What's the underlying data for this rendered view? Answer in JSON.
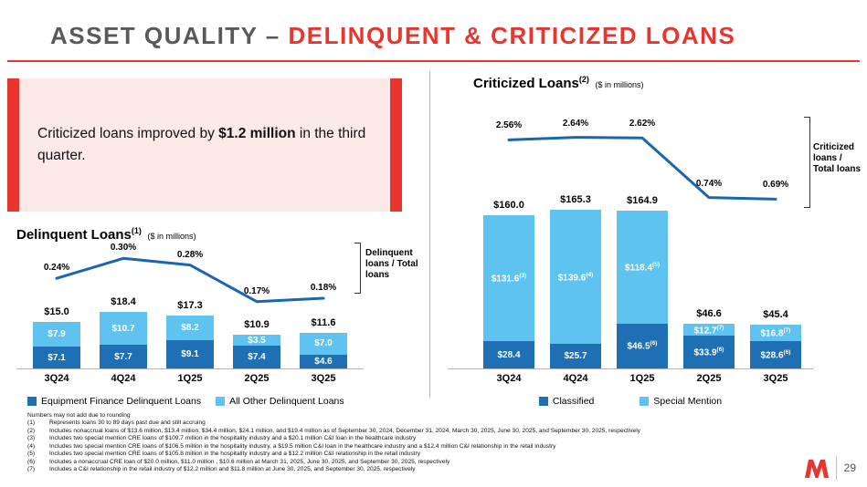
{
  "colors": {
    "red": "#e8352d",
    "dark_blue": "#1f6fb5",
    "light_blue": "#5ec3f0",
    "line_blue": "#1a66b0",
    "title_gray": "#58595b"
  },
  "header": {
    "title_gray": "ASSET QUALITY – ",
    "title_red": "DELINQUENT & CRITICIZED LOANS"
  },
  "callout": {
    "prefix": "Criticized loans improved by ",
    "bold": "$1.2 million",
    "suffix": " in the third quarter."
  },
  "chart_data": [
    {
      "id": "delinquent",
      "type": "bar",
      "title": "Delinquent Loans",
      "title_sup": "(1)",
      "subtitle": "($ in millions)",
      "categories": [
        "3Q24",
        "4Q24",
        "1Q25",
        "2Q25",
        "3Q25"
      ],
      "series": [
        {
          "name": "Equipment Finance Delinquent Loans",
          "position": "bottom",
          "color_key": "dark_blue",
          "values": [
            7.1,
            7.7,
            9.1,
            7.4,
            4.6
          ],
          "labels": [
            {
              "v": "$7.1"
            },
            {
              "v": "$7.7"
            },
            {
              "v": "$9.1"
            },
            {
              "v": "$7.4"
            },
            {
              "v": "$4.6"
            }
          ]
        },
        {
          "name": "All Other Delinquent Loans",
          "position": "top",
          "color_key": "light_blue",
          "values": [
            7.9,
            10.7,
            8.2,
            3.5,
            7.0
          ],
          "labels": [
            {
              "v": "$7.9"
            },
            {
              "v": "$10.7"
            },
            {
              "v": "$8.2"
            },
            {
              "v": "$3.5"
            },
            {
              "v": "$7.0"
            }
          ]
        }
      ],
      "totals": [
        "$15.0",
        "$18.4",
        "$17.3",
        "$10.9",
        "$11.6"
      ],
      "ratio_line": {
        "label": "Delinquent loans / Total loans",
        "values": [
          0.24,
          0.3,
          0.28,
          0.17,
          0.18
        ],
        "point_labels": [
          "0.24%",
          "0.30%",
          "0.28%",
          "0.17%",
          "0.18%"
        ]
      },
      "ylim": [
        0,
        20
      ]
    },
    {
      "id": "criticized",
      "type": "bar",
      "title": "Criticized Loans",
      "title_sup": "(2)",
      "subtitle": "($ in millions)",
      "categories": [
        "3Q24",
        "4Q24",
        "1Q25",
        "2Q25",
        "3Q25"
      ],
      "series": [
        {
          "name": "Classified",
          "position": "bottom",
          "color_key": "dark_blue",
          "values": [
            28.4,
            25.7,
            46.5,
            33.9,
            28.6
          ],
          "labels": [
            {
              "v": "$28.4"
            },
            {
              "v": "$25.7"
            },
            {
              "v": "$46.5",
              "sup": "(6)"
            },
            {
              "v": "$33.9",
              "sup": "(6)"
            },
            {
              "v": "$28.6",
              "sup": "(6)"
            }
          ]
        },
        {
          "name": "Special Mention",
          "position": "top",
          "color_key": "light_blue",
          "values": [
            131.6,
            139.6,
            118.4,
            12.7,
            16.8
          ],
          "labels": [
            {
              "v": "$131.6",
              "sup": "(3)"
            },
            {
              "v": "$139.6",
              "sup": "(4)"
            },
            {
              "v": "$118.4",
              "sup": "(5)"
            },
            {
              "v": "$12.7",
              "sup": "(7)"
            },
            {
              "v": "$16.8",
              "sup": "(7)"
            }
          ]
        }
      ],
      "totals": [
        "$160.0",
        "$165.3",
        "$164.9",
        "$46.6",
        "$45.4"
      ],
      "ratio_line": {
        "label": "Criticized loans / Total loans",
        "values": [
          2.56,
          2.64,
          2.62,
          0.74,
          0.69
        ],
        "point_labels": [
          "2.56%",
          "2.64%",
          "2.62%",
          "0.74%",
          "0.69%"
        ]
      },
      "ylim": [
        0,
        180
      ]
    }
  ],
  "footnotes": {
    "rounding_note": "Numbers may not add due to rounding",
    "items": [
      {
        "num": "(1)",
        "text": "Represents loans 30 to 89 days past due and still accruing"
      },
      {
        "num": "(2)",
        "text": "Includes nonaccrual loans of $13.6 million, $13.4 million, $34.4 million, $24.1 million, and $19.4 million as of September 30, 2024, December 31, 2024, March 30, 2025, June 30, 2025, and September 30, 2025, respectively"
      },
      {
        "num": "(3)",
        "text": "Includes two special mention CRE loans of $109.7 million in the hospitality industry and a $20.1 million C&I loan in the healthcare industry"
      },
      {
        "num": "(4)",
        "text": "Includes two special mention CRE loans of $106.5 million in the hospitality industry, a $19.5 million C&I loan in the healthcare industry and a $12.4 million C&I relationship in the retail industry"
      },
      {
        "num": "(5)",
        "text": "Includes two special mention CRE loans of $105.8 million in the hospitality industry and a $12.2 million C&I relationship in the retail industry"
      },
      {
        "num": "(6)",
        "text": "Includes a nonaccrual CRE loan of $20.0 million, $11.0 million , $10.6 million at March 31, 2025, June 30, 2025, and September 30, 2025, respectively"
      },
      {
        "num": "(7)",
        "text": "Includes a C&I relationship in the retail industry of $12.2 million and $11.8 million at June 30, 2025, and September 30, 2025, respectively"
      }
    ]
  },
  "footer": {
    "page_number": "29"
  }
}
